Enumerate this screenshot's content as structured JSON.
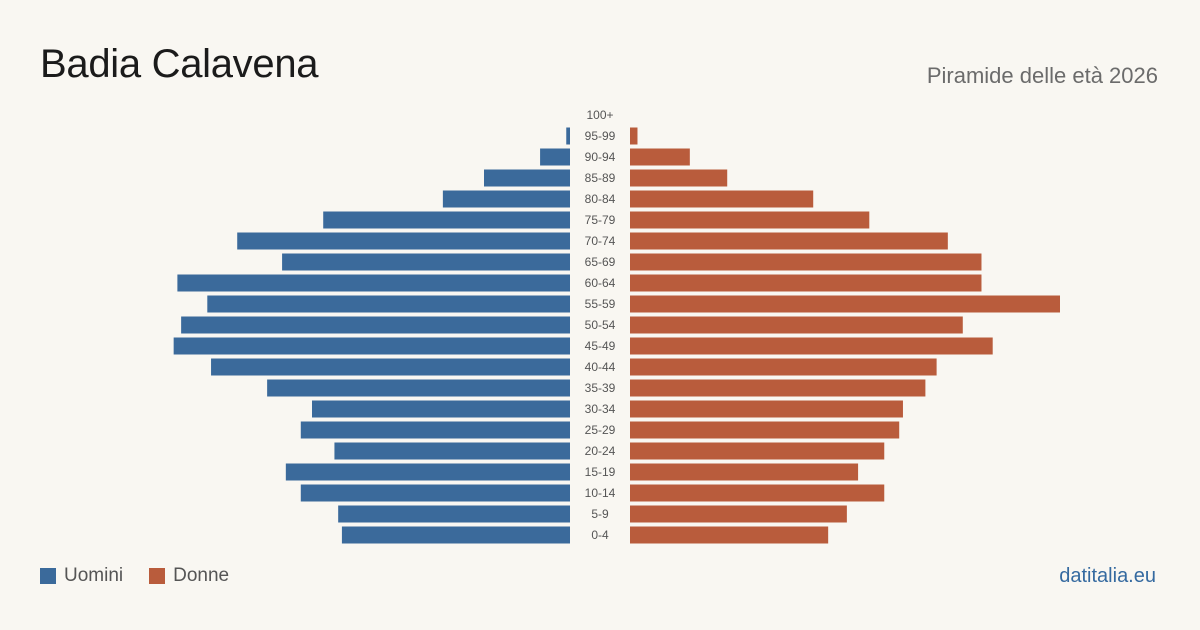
{
  "header": {
    "title": "Badia Calavena",
    "subtitle": "Piramide delle età 2026"
  },
  "legend": {
    "men_label": "Uomini",
    "women_label": "Donne"
  },
  "footer": {
    "brand": "datitalia.eu"
  },
  "colors": {
    "men": "#3b6a9b",
    "women": "#b95c3c",
    "tick_text": "#555555"
  },
  "chart_data": {
    "type": "bar",
    "orientation": "horizontal-pyramid",
    "title": "Piramide delle età 2026",
    "categories": [
      "100+",
      "95-99",
      "90-94",
      "85-89",
      "80-84",
      "75-79",
      "70-74",
      "65-69",
      "60-64",
      "55-59",
      "50-54",
      "45-49",
      "40-44",
      "35-39",
      "30-34",
      "25-29",
      "20-24",
      "15-19",
      "10-14",
      "5-9",
      "0-4"
    ],
    "series": [
      {
        "name": "Uomini",
        "values": [
          0,
          1,
          8,
          23,
          34,
          66,
          89,
          77,
          105,
          97,
          104,
          106,
          96,
          81,
          69,
          72,
          63,
          76,
          72,
          62,
          61
        ]
      },
      {
        "name": "Donne",
        "values": [
          0,
          2,
          16,
          26,
          49,
          64,
          85,
          94,
          94,
          115,
          89,
          97,
          82,
          79,
          73,
          72,
          68,
          61,
          68,
          58,
          53
        ]
      }
    ],
    "legend_position": "bottom-left",
    "grid": false
  }
}
